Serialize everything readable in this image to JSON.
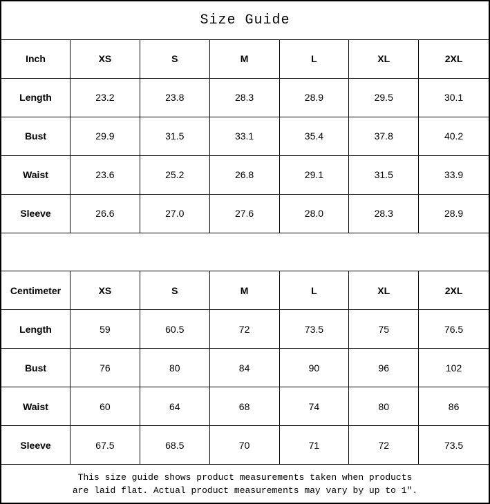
{
  "title": "Size Guide",
  "size_tables": [
    {
      "unit": "Inch",
      "sizes": [
        "XS",
        "S",
        "M",
        "L",
        "XL",
        "2XL"
      ],
      "rows": [
        {
          "label": "Length",
          "values": [
            "23.2",
            "23.8",
            "28.3",
            "28.9",
            "29.5",
            "30.1"
          ]
        },
        {
          "label": "Bust",
          "values": [
            "29.9",
            "31.5",
            "33.1",
            "35.4",
            "37.8",
            "40.2"
          ]
        },
        {
          "label": "Waist",
          "values": [
            "23.6",
            "25.2",
            "26.8",
            "29.1",
            "31.5",
            "33.9"
          ]
        },
        {
          "label": "Sleeve",
          "values": [
            "26.6",
            "27.0",
            "27.6",
            "28.0",
            "28.3",
            "28.9"
          ]
        }
      ]
    },
    {
      "unit": "Centimeter",
      "sizes": [
        "XS",
        "S",
        "M",
        "L",
        "XL",
        "2XL"
      ],
      "rows": [
        {
          "label": "Length",
          "values": [
            "59",
            "60.5",
            "72",
            "73.5",
            "75",
            "76.5"
          ]
        },
        {
          "label": "Bust",
          "values": [
            "76",
            "80",
            "84",
            "90",
            "96",
            "102"
          ]
        },
        {
          "label": "Waist",
          "values": [
            "60",
            "64",
            "68",
            "74",
            "80",
            "86"
          ]
        },
        {
          "label": "Sleeve",
          "values": [
            "67.5",
            "68.5",
            "70",
            "71",
            "72",
            "73.5"
          ]
        }
      ]
    }
  ],
  "footer_note": {
    "line1": "This size guide shows product measurements taken when products",
    "line2": "are laid flat. Actual product measurements may vary by up to 1″."
  }
}
